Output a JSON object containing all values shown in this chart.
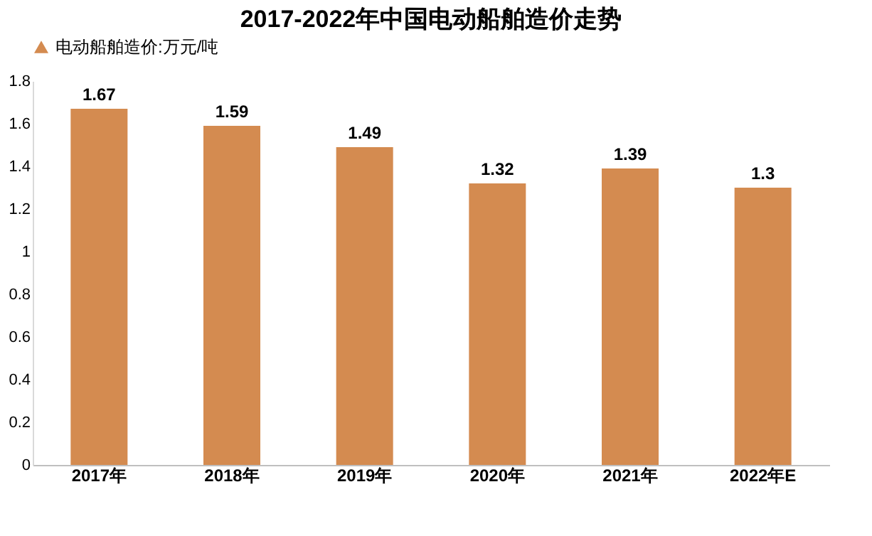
{
  "chart_data": {
    "type": "bar",
    "title": "2017-2022年中国电动船舶造价走势",
    "categories": [
      "2017年",
      "2018年",
      "2019年",
      "2020年",
      "2021年",
      "2022年E"
    ],
    "series": [
      {
        "name": "电动船舶造价:万元/吨",
        "color": "#d48b50",
        "values": [
          1.67,
          1.59,
          1.49,
          1.32,
          1.39,
          1.3
        ]
      }
    ],
    "ylim": [
      0,
      1.8
    ],
    "yticks": [
      0,
      0.2,
      0.4,
      0.6,
      0.8,
      1,
      1.2,
      1.4,
      1.6,
      1.8
    ],
    "grid": false,
    "legend": "top",
    "data_labels": true
  }
}
